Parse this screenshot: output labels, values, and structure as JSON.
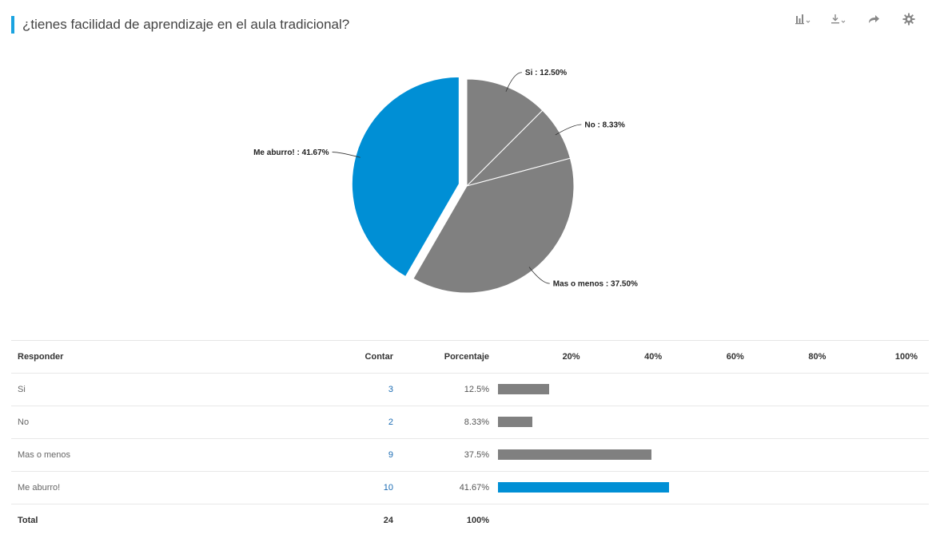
{
  "title": "¿tienes facilidad de aprendizaje en el aula tradicional?",
  "toolbar": {
    "icons": [
      "bar-chart-icon",
      "download-icon",
      "share-icon",
      "gear-icon"
    ]
  },
  "colors": {
    "accent": "#1aa3e0",
    "highlight": "#008fd5",
    "gray": "#808080"
  },
  "chart_data": {
    "type": "pie",
    "slices": [
      {
        "label": "Si : 12.50%",
        "name": "Si",
        "value": 12.5,
        "color": "#808080"
      },
      {
        "label": "No : 8.33%",
        "name": "No",
        "value": 8.33,
        "color": "#808080"
      },
      {
        "label": "Mas o menos : 37.50%",
        "name": "Mas o menos",
        "value": 37.5,
        "color": "#808080"
      },
      {
        "label": "Me aburro! : 41.67%",
        "name": "Me aburro!",
        "value": 41.67,
        "color": "#008fd5",
        "exploded": true
      }
    ]
  },
  "table": {
    "headers": {
      "responder": "Responder",
      "contar": "Contar",
      "porcentaje": "Porcentaje"
    },
    "axis_ticks": [
      {
        "label": "20%",
        "value": 20
      },
      {
        "label": "40%",
        "value": 40
      },
      {
        "label": "60%",
        "value": 60
      },
      {
        "label": "80%",
        "value": 80
      },
      {
        "label": "100%",
        "value": 100
      }
    ],
    "rows": [
      {
        "responder": "Si",
        "contar": "3",
        "porcentaje": "12.5%",
        "value": 12.5,
        "color": "#808080"
      },
      {
        "responder": "No",
        "contar": "2",
        "porcentaje": "8.33%",
        "value": 8.33,
        "color": "#808080"
      },
      {
        "responder": "Mas o menos",
        "contar": "9",
        "porcentaje": "37.5%",
        "value": 37.5,
        "color": "#808080"
      },
      {
        "responder": "Me aburro!",
        "contar": "10",
        "porcentaje": "41.67%",
        "value": 41.67,
        "color": "#008fd5"
      }
    ],
    "total": {
      "responder": "Total",
      "contar": "24",
      "porcentaje": "100%"
    }
  }
}
